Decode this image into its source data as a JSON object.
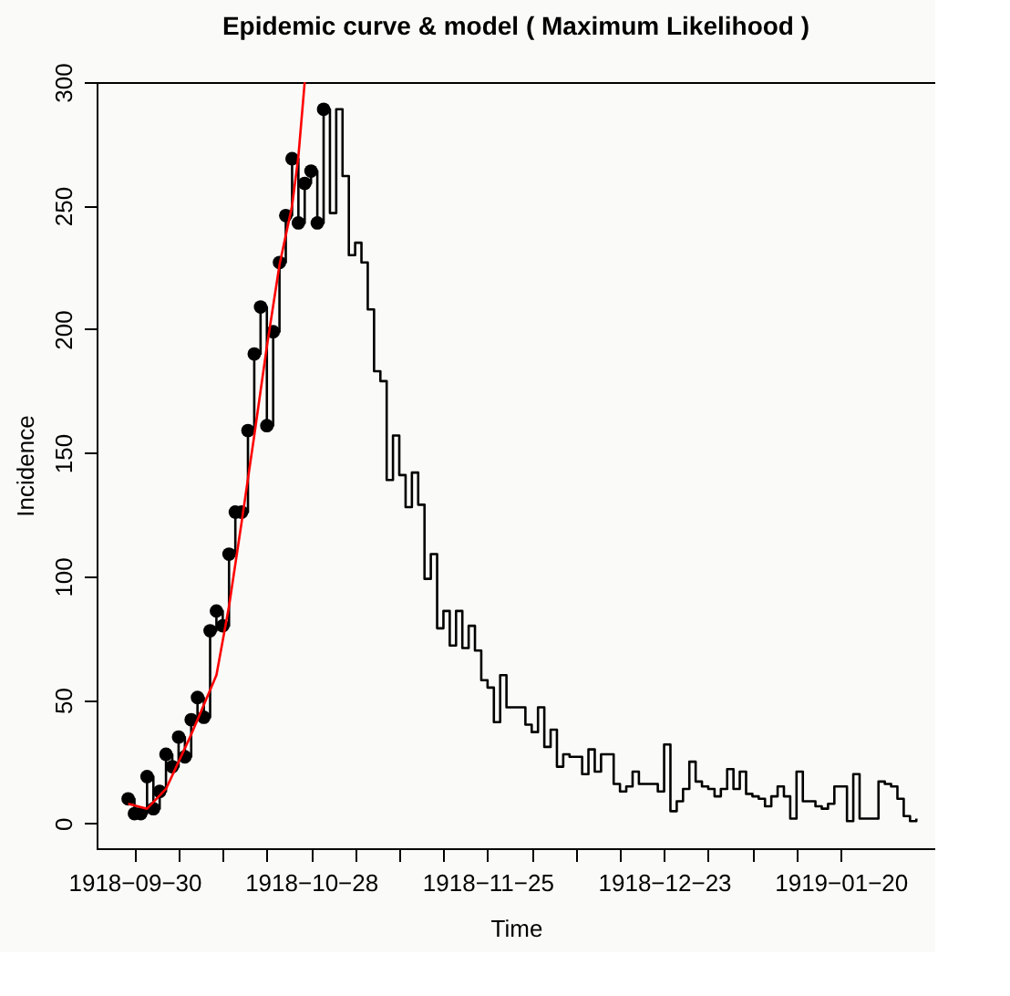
{
  "chart_data": {
    "type": "step",
    "title": "Epidemic curve & model ( Maximum Likelihood )",
    "xlabel": "Time",
    "ylabel": "Incidence",
    "x": [
      "1918-09-29",
      "1918-09-30",
      "1918-10-01",
      "1918-10-02",
      "1918-10-03",
      "1918-10-04",
      "1918-10-05",
      "1918-10-06",
      "1918-10-07",
      "1918-10-08",
      "1918-10-09",
      "1918-10-10",
      "1918-10-11",
      "1918-10-12",
      "1918-10-13",
      "1918-10-14",
      "1918-10-15",
      "1918-10-16",
      "1918-10-17",
      "1918-10-18",
      "1918-10-19",
      "1918-10-20",
      "1918-10-21",
      "1918-10-22",
      "1918-10-23",
      "1918-10-24",
      "1918-10-25",
      "1918-10-26",
      "1918-10-27",
      "1918-10-28",
      "1918-10-29",
      "1918-10-30",
      "1918-10-31",
      "1918-11-01",
      "1918-11-02",
      "1918-11-03",
      "1918-11-04",
      "1918-11-05",
      "1918-11-06",
      "1918-11-07",
      "1918-11-08",
      "1918-11-09",
      "1918-11-10",
      "1918-11-11",
      "1918-11-12",
      "1918-11-13",
      "1918-11-14",
      "1918-11-15",
      "1918-11-16",
      "1918-11-17",
      "1918-11-18",
      "1918-11-19",
      "1918-11-20",
      "1918-11-21",
      "1918-11-22",
      "1918-11-23",
      "1918-11-24",
      "1918-11-25",
      "1918-11-26",
      "1918-11-27",
      "1918-11-28",
      "1918-11-29",
      "1918-11-30",
      "1918-12-01",
      "1918-12-02",
      "1918-12-03",
      "1918-12-04",
      "1918-12-05",
      "1918-12-06",
      "1918-12-07",
      "1918-12-08",
      "1918-12-09",
      "1918-12-10",
      "1918-12-11",
      "1918-12-12",
      "1918-12-13",
      "1918-12-14",
      "1918-12-15",
      "1918-12-16",
      "1918-12-17",
      "1918-12-18",
      "1918-12-19",
      "1918-12-20",
      "1918-12-21",
      "1918-12-22",
      "1918-12-23",
      "1918-12-24",
      "1918-12-25",
      "1918-12-26",
      "1918-12-27",
      "1918-12-28",
      "1918-12-29",
      "1918-12-30",
      "1918-12-31",
      "1919-01-01",
      "1919-01-02",
      "1919-01-03",
      "1919-01-04",
      "1919-01-05",
      "1919-01-06",
      "1919-01-07",
      "1919-01-08",
      "1919-01-09",
      "1919-01-10",
      "1919-01-11",
      "1919-01-12",
      "1919-01-13",
      "1919-01-14",
      "1919-01-15",
      "1919-01-16",
      "1919-01-17",
      "1919-01-18",
      "1919-01-19",
      "1919-01-20",
      "1919-01-21",
      "1919-01-22",
      "1919-01-23",
      "1919-01-24",
      "1919-01-25",
      "1919-01-26",
      "1919-01-27",
      "1919-01-28",
      "1919-01-29",
      "1919-01-30",
      "1919-01-31",
      "1919-02-01"
    ],
    "series": [
      {
        "color": "#000000",
        "values": [
          10,
          4,
          4,
          19,
          6,
          13,
          28,
          23,
          35,
          27,
          42,
          51,
          43,
          78,
          86,
          80,
          109,
          126,
          126,
          159,
          190,
          209,
          161,
          199,
          227,
          246,
          269,
          243,
          259,
          264,
          243,
          289,
          247,
          289,
          262,
          230,
          235,
          227,
          208,
          183,
          179,
          139,
          157,
          141,
          128,
          142,
          129,
          99,
          109,
          79,
          86,
          72,
          86,
          71,
          80,
          70,
          58,
          55,
          41,
          60,
          47,
          47,
          47,
          40,
          37,
          47,
          31,
          38,
          23,
          28,
          27,
          27,
          20,
          30,
          21,
          28,
          28,
          16,
          13,
          15,
          21,
          16,
          16,
          16,
          13,
          32,
          5,
          9,
          14,
          25,
          17,
          15,
          14,
          11,
          14,
          22,
          14,
          21,
          12,
          11,
          10,
          7,
          11,
          15,
          11,
          2,
          21,
          9,
          9,
          7,
          6,
          8,
          15,
          15,
          1,
          20,
          2,
          2,
          2,
          17,
          16,
          15,
          10,
          3,
          1,
          2
        ]
      },
      {
        "type": "scatter",
        "color": "#000000",
        "marker": "circle",
        "x": [
          "1918-09-29",
          "1918-09-30",
          "1918-10-01",
          "1918-10-02",
          "1918-10-03",
          "1918-10-04",
          "1918-10-05",
          "1918-10-06",
          "1918-10-07",
          "1918-10-08",
          "1918-10-09",
          "1918-10-10",
          "1918-10-11",
          "1918-10-12",
          "1918-10-13",
          "1918-10-14",
          "1918-10-15",
          "1918-10-16",
          "1918-10-17",
          "1918-10-18",
          "1918-10-19",
          "1918-10-20",
          "1918-10-21",
          "1918-10-22",
          "1918-10-23",
          "1918-10-24",
          "1918-10-25",
          "1918-10-26",
          "1918-10-27",
          "1918-10-28",
          "1918-10-29",
          "1918-10-30"
        ],
        "values": [
          10,
          4,
          4,
          19,
          6,
          13,
          28,
          23,
          35,
          27,
          42,
          51,
          43,
          78,
          86,
          80,
          109,
          126,
          126,
          159,
          190,
          209,
          161,
          199,
          227,
          246,
          269,
          243,
          259,
          264,
          243,
          289
        ]
      },
      {
        "type": "line",
        "color": "#ff0000",
        "x": [
          "1918-09-29",
          "1918-10-02",
          "1918-10-05",
          "1918-10-09",
          "1918-10-13",
          "1918-10-15",
          "1918-10-17",
          "1918-10-19",
          "1918-10-21",
          "1918-10-23",
          "1918-10-25",
          "1918-10-26",
          "1918-10-27"
        ],
        "values": [
          8,
          6,
          14,
          36,
          60,
          88,
          122,
          157,
          193,
          226,
          250,
          270,
          300
        ]
      }
    ],
    "xlim": [
      "1918-09-24",
      "1919-02-04"
    ],
    "ylim": [
      -10,
      300
    ],
    "xticks": [
      {
        "value": "1918-09-30",
        "label": "1918−09−30"
      },
      {
        "value": "1918-10-07",
        "label": null
      },
      {
        "value": "1918-10-14",
        "label": null
      },
      {
        "value": "1918-10-21",
        "label": null
      },
      {
        "value": "1918-10-28",
        "label": "1918−10−28"
      },
      {
        "value": "1918-11-04",
        "label": null
      },
      {
        "value": "1918-11-11",
        "label": null
      },
      {
        "value": "1918-11-18",
        "label": null
      },
      {
        "value": "1918-11-25",
        "label": "1918−11−25"
      },
      {
        "value": "1918-12-02",
        "label": null
      },
      {
        "value": "1918-12-09",
        "label": null
      },
      {
        "value": "1918-12-16",
        "label": null
      },
      {
        "value": "1918-12-23",
        "label": "1918−12−23"
      },
      {
        "value": "1918-12-30",
        "label": null
      },
      {
        "value": "1919-01-06",
        "label": null
      },
      {
        "value": "1919-01-13",
        "label": null
      },
      {
        "value": "1919-01-20",
        "label": "1919−01−20"
      }
    ],
    "yticks": [
      0,
      50,
      100,
      150,
      200,
      250,
      300
    ],
    "grid": false
  }
}
